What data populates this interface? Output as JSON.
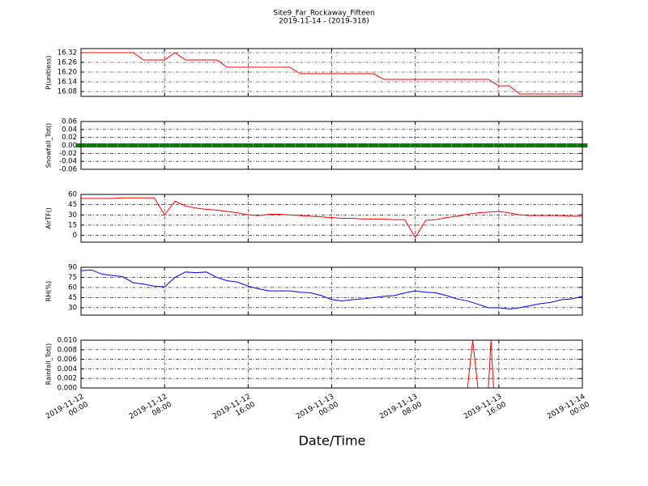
{
  "chart_data": [
    {
      "type": "line",
      "title": "Site9_Far_Rockaway_Fifteen",
      "subtitle": "2019-11-14 - (2019-318)",
      "y_label": "P(unitless)",
      "color": "red",
      "x": [
        "2019-11-12 00:00",
        "2019-11-12 01:00",
        "2019-11-12 02:00",
        "2019-11-12 03:00",
        "2019-11-12 04:00",
        "2019-11-12 05:00",
        "2019-11-12 06:00",
        "2019-11-12 07:00",
        "2019-11-12 08:00",
        "2019-11-12 09:00",
        "2019-11-12 10:00",
        "2019-11-12 11:00",
        "2019-11-12 12:00",
        "2019-11-12 13:00",
        "2019-11-12 14:00",
        "2019-11-12 15:00",
        "2019-11-12 16:00",
        "2019-11-12 17:00",
        "2019-11-12 18:00",
        "2019-11-12 19:00",
        "2019-11-12 20:00",
        "2019-11-12 21:00",
        "2019-11-12 22:00",
        "2019-11-12 23:00",
        "2019-11-13 00:00",
        "2019-11-13 01:00",
        "2019-11-13 02:00",
        "2019-11-13 03:00",
        "2019-11-13 04:00",
        "2019-11-13 05:00",
        "2019-11-13 06:00",
        "2019-11-13 07:00",
        "2019-11-13 08:00",
        "2019-11-13 09:00",
        "2019-11-13 10:00",
        "2019-11-13 11:00",
        "2019-11-13 12:00",
        "2019-11-13 13:00",
        "2019-11-13 14:00",
        "2019-11-13 15:00",
        "2019-11-13 16:00",
        "2019-11-13 17:00",
        "2019-11-13 18:00",
        "2019-11-13 19:00",
        "2019-11-13 20:00",
        "2019-11-13 21:00",
        "2019-11-13 22:00",
        "2019-11-13 23:00",
        "2019-11-14 00:00"
      ],
      "values": [
        16.32,
        16.32,
        16.32,
        16.32,
        16.32,
        16.32,
        16.275,
        16.275,
        16.275,
        16.32,
        16.275,
        16.275,
        16.275,
        16.275,
        16.23,
        16.23,
        16.23,
        16.23,
        16.23,
        16.23,
        16.23,
        16.19,
        16.19,
        16.19,
        16.19,
        16.19,
        16.19,
        16.19,
        16.19,
        16.155,
        16.155,
        16.155,
        16.155,
        16.155,
        16.155,
        16.155,
        16.155,
        16.155,
        16.155,
        16.155,
        16.115,
        16.115,
        16.065,
        16.065,
        16.065,
        16.065,
        16.065,
        16.065,
        16.065
      ],
      "xlim": [
        "2019-11-12 00:00",
        "2019-11-14 00:00"
      ],
      "ylim": [
        16.05,
        16.345
      ],
      "yticks": [
        16.08,
        16.14,
        {
          "value": 16.2,
          "label": "16.20"
        },
        16.26,
        16.32
      ],
      "grid": true
    },
    {
      "type": "scatter",
      "y_label": "Snowfall_Tot()",
      "color": "green",
      "x": [
        "2019-11-12 00:00",
        "2019-11-12 01:00",
        "2019-11-12 02:00",
        "2019-11-12 03:00",
        "2019-11-12 04:00",
        "2019-11-12 05:00",
        "2019-11-12 06:00",
        "2019-11-12 07:00",
        "2019-11-12 08:00",
        "2019-11-12 09:00",
        "2019-11-12 10:00",
        "2019-11-12 11:00",
        "2019-11-12 12:00",
        "2019-11-12 13:00",
        "2019-11-12 14:00",
        "2019-11-12 15:00",
        "2019-11-12 16:00",
        "2019-11-12 17:00",
        "2019-11-12 18:00",
        "2019-11-12 19:00",
        "2019-11-12 20:00",
        "2019-11-12 21:00",
        "2019-11-12 22:00",
        "2019-11-12 23:00",
        "2019-11-13 00:00",
        "2019-11-13 01:00",
        "2019-11-13 02:00",
        "2019-11-13 03:00",
        "2019-11-13 04:00",
        "2019-11-13 05:00",
        "2019-11-13 06:00",
        "2019-11-13 07:00",
        "2019-11-13 08:00",
        "2019-11-13 09:00",
        "2019-11-13 10:00",
        "2019-11-13 11:00",
        "2019-11-13 12:00",
        "2019-11-13 13:00",
        "2019-11-13 14:00",
        "2019-11-13 15:00",
        "2019-11-13 16:00",
        "2019-11-13 17:00",
        "2019-11-13 18:00",
        "2019-11-13 19:00",
        "2019-11-13 20:00",
        "2019-11-13 21:00",
        "2019-11-13 22:00",
        "2019-11-13 23:00",
        "2019-11-14 00:00"
      ],
      "values": [
        0,
        0,
        0,
        0,
        0,
        0,
        0,
        0,
        0,
        0,
        0,
        0,
        0,
        0,
        0,
        0,
        0,
        0,
        0,
        0,
        0,
        0,
        0,
        0,
        0,
        0,
        0,
        0,
        0,
        0,
        0,
        0,
        0,
        0,
        0,
        0,
        0,
        0,
        0,
        0,
        0,
        0,
        0,
        0,
        0,
        0,
        0,
        0,
        0
      ],
      "xlim": [
        "2019-11-12 00:00",
        "2019-11-14 00:00"
      ],
      "ylim": [
        -0.06,
        0.06
      ],
      "yticks": [
        -0.06,
        -0.04,
        -0.02,
        {
          "value": 0,
          "label": "0.00"
        },
        0.02,
        0.04,
        0.06
      ],
      "grid": true
    },
    {
      "type": "line",
      "y_label": "AirTF()",
      "color": "red",
      "x": [
        "2019-11-12 00:00",
        "2019-11-12 01:00",
        "2019-11-12 02:00",
        "2019-11-12 03:00",
        "2019-11-12 04:00",
        "2019-11-12 05:00",
        "2019-11-12 06:00",
        "2019-11-12 07:00",
        "2019-11-12 08:00",
        "2019-11-12 09:00",
        "2019-11-12 10:00",
        "2019-11-12 11:00",
        "2019-11-12 12:00",
        "2019-11-12 13:00",
        "2019-11-12 14:00",
        "2019-11-12 15:00",
        "2019-11-12 16:00",
        "2019-11-12 17:00",
        "2019-11-12 18:00",
        "2019-11-12 19:00",
        "2019-11-12 20:00",
        "2019-11-12 21:00",
        "2019-11-12 22:00",
        "2019-11-12 23:00",
        "2019-11-13 00:00",
        "2019-11-13 01:00",
        "2019-11-13 02:00",
        "2019-11-13 03:00",
        "2019-11-13 04:00",
        "2019-11-13 05:00",
        "2019-11-13 06:00",
        "2019-11-13 07:00",
        "2019-11-13 08:00",
        "2019-11-13 09:00",
        "2019-11-13 10:00",
        "2019-11-13 11:00",
        "2019-11-13 12:00",
        "2019-11-13 13:00",
        "2019-11-13 14:00",
        "2019-11-13 15:00",
        "2019-11-13 16:00",
        "2019-11-13 17:00",
        "2019-11-13 18:00",
        "2019-11-13 19:00",
        "2019-11-13 20:00",
        "2019-11-13 21:00",
        "2019-11-13 22:00",
        "2019-11-13 23:00",
        "2019-11-14 00:00"
      ],
      "values": [
        54,
        54,
        54,
        54,
        55,
        55,
        55,
        55,
        30,
        50,
        43,
        40,
        38,
        37,
        35,
        33,
        30,
        29,
        31,
        31,
        30,
        29,
        28,
        27,
        26,
        25,
        25,
        24,
        24,
        24,
        23,
        23,
        -3,
        22,
        23,
        26,
        28,
        31,
        33,
        34,
        35,
        33,
        30,
        29,
        29,
        29,
        29,
        28,
        28
      ],
      "xlim": [
        "2019-11-12 00:00",
        "2019-11-14 00:00"
      ],
      "ylim": [
        -10,
        60
      ],
      "yticks": [
        0,
        15,
        30,
        45,
        60
      ],
      "grid": true
    },
    {
      "type": "line",
      "y_label": "RH(%)",
      "color": "blue",
      "x": [
        "2019-11-12 00:00",
        "2019-11-12 01:00",
        "2019-11-12 02:00",
        "2019-11-12 03:00",
        "2019-11-12 04:00",
        "2019-11-12 05:00",
        "2019-11-12 06:00",
        "2019-11-12 07:00",
        "2019-11-12 08:00",
        "2019-11-12 09:00",
        "2019-11-12 10:00",
        "2019-11-12 11:00",
        "2019-11-12 12:00",
        "2019-11-12 13:00",
        "2019-11-12 14:00",
        "2019-11-12 15:00",
        "2019-11-12 16:00",
        "2019-11-12 17:00",
        "2019-11-12 18:00",
        "2019-11-12 19:00",
        "2019-11-12 20:00",
        "2019-11-12 21:00",
        "2019-11-12 22:00",
        "2019-11-12 23:00",
        "2019-11-13 00:00",
        "2019-11-13 01:00",
        "2019-11-13 02:00",
        "2019-11-13 03:00",
        "2019-11-13 04:00",
        "2019-11-13 05:00",
        "2019-11-13 06:00",
        "2019-11-13 07:00",
        "2019-11-13 08:00",
        "2019-11-13 09:00",
        "2019-11-13 10:00",
        "2019-11-13 11:00",
        "2019-11-13 12:00",
        "2019-11-13 13:00",
        "2019-11-13 14:00",
        "2019-11-13 15:00",
        "2019-11-13 16:00",
        "2019-11-13 17:00",
        "2019-11-13 18:00",
        "2019-11-13 19:00",
        "2019-11-13 20:00",
        "2019-11-13 21:00",
        "2019-11-13 22:00",
        "2019-11-13 23:00",
        "2019-11-14 00:00"
      ],
      "values": [
        85,
        86,
        80,
        78,
        76,
        67,
        65,
        62,
        61,
        75,
        83,
        82,
        83,
        75,
        70,
        68,
        62,
        58,
        55,
        55,
        55,
        53,
        52,
        48,
        42,
        40,
        42,
        43,
        45,
        47,
        48,
        52,
        55,
        53,
        52,
        48,
        43,
        40,
        35,
        30,
        30,
        28,
        30,
        33,
        36,
        38,
        42,
        43,
        47
      ],
      "xlim": [
        "2019-11-12 00:00",
        "2019-11-14 00:00"
      ],
      "ylim": [
        19,
        90
      ],
      "yticks": [
        30,
        45,
        60,
        75,
        90
      ],
      "grid": true
    },
    {
      "type": "line",
      "y_label": "Rainfall_Tot()",
      "x_label": "Date/Time",
      "color": "red",
      "x": [
        "2019-11-12 00:00",
        "2019-11-13 13:00",
        "2019-11-13 13:30",
        "2019-11-13 14:00",
        "2019-11-13 15:00",
        "2019-11-13 15:15",
        "2019-11-13 15:30",
        "2019-11-14 00:00"
      ],
      "values": [
        0,
        0,
        0.01,
        0,
        0,
        0.01,
        0,
        0
      ],
      "xlim": [
        "2019-11-12 00:00",
        "2019-11-14 00:00"
      ],
      "ylim": [
        0,
        0.01
      ],
      "yticks": [
        {
          "value": 0,
          "label": "0.000"
        },
        0.002,
        0.004,
        0.006,
        0.008,
        {
          "value": 0.01,
          "label": "0.010"
        }
      ],
      "xticks": [
        "2019-11-12\n00:00",
        "2019-11-12\n08:00",
        "2019-11-12\n16:00",
        "2019-11-13\n00:00",
        "2019-11-13\n08:00",
        "2019-11-13\n16:00",
        "2019-11-14\n00:00"
      ],
      "grid": true
    }
  ]
}
